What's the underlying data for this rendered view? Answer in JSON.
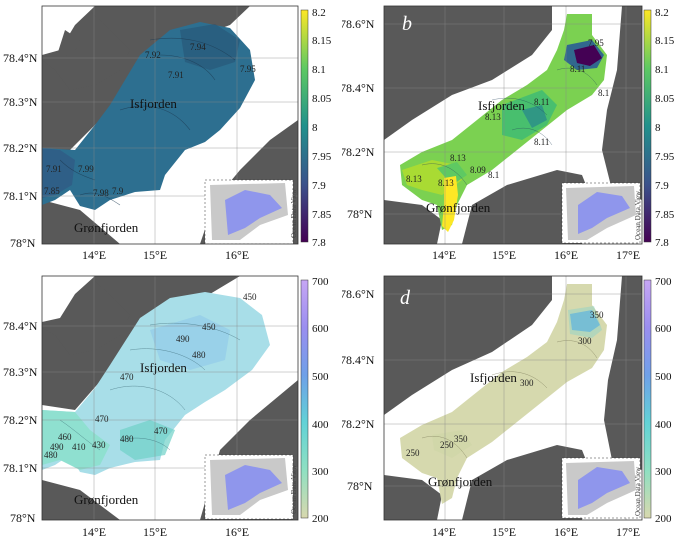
{
  "panels": [
    {
      "letter": "a",
      "place_labels": [
        "Isfjorden",
        "Grønfjorden"
      ],
      "contour_labels": [
        "7.94",
        "7.92",
        "7.91",
        "7.95",
        "7.91",
        "7.99",
        "7.98",
        "7.9",
        "7.85"
      ],
      "y_ticks": [
        "78.4°N",
        "78.3°N",
        "78.2°N",
        "78.1°N",
        "78°N"
      ],
      "x_ticks": [
        "14°E",
        "15°E",
        "16°E"
      ],
      "colorbar": {
        "ticks": [
          "8.2",
          "8.15",
          "8.1",
          "8.05",
          "8",
          "7.95",
          "7.9",
          "7.85",
          "7.8"
        ],
        "min": 7.8,
        "max": 8.2,
        "colors": [
          "#440154",
          "#3b528b",
          "#21918c",
          "#5ec962",
          "#fde725"
        ]
      },
      "watermark": "Ocean Data View"
    },
    {
      "letter": "b",
      "place_labels": [
        "Isfjorden",
        "Grønfjorden"
      ],
      "contour_labels": [
        "7.95",
        "8.11",
        "8.1",
        "8.11",
        "8.13",
        "8.11",
        "8.13",
        "8.09",
        "8.1",
        "8.13",
        "8.13"
      ],
      "y_ticks": [
        "78.6°N",
        "78.4°N",
        "78.2°N",
        "78°N"
      ],
      "x_ticks": [
        "14°E",
        "15°E",
        "16°E",
        "17°E"
      ],
      "colorbar": {
        "ticks": [
          "8.2",
          "8.15",
          "8.1",
          "8.05",
          "8",
          "7.95",
          "7.9",
          "7.85",
          "7.8"
        ],
        "min": 7.8,
        "max": 8.2,
        "colors": [
          "#440154",
          "#3b528b",
          "#21918c",
          "#5ec962",
          "#fde725"
        ]
      },
      "watermark": "Ocean Data View"
    },
    {
      "letter": "c",
      "place_labels": [
        "Isfjorden",
        "Grønfjorden"
      ],
      "contour_labels": [
        "450",
        "490",
        "480",
        "470",
        "450",
        "460",
        "490",
        "410",
        "480",
        "470",
        "430",
        "480",
        "470"
      ],
      "y_ticks": [
        "78.4°N",
        "78.3°N",
        "78.2°N",
        "78.1°N",
        "78°N"
      ],
      "x_ticks": [
        "14°E",
        "15°E",
        "16°E"
      ],
      "colorbar": {
        "ticks": [
          "700",
          "600",
          "500",
          "400",
          "300",
          "200"
        ],
        "min": 200,
        "max": 700,
        "colors": [
          "#d8d8ae",
          "#8fe0c2",
          "#62d2d6",
          "#6fa0e8",
          "#9a8ef0",
          "#c6a6f4"
        ]
      },
      "watermark": "Ocean Data View"
    },
    {
      "letter": "d",
      "place_labels": [
        "Isfjorden",
        "Grønfjorden"
      ],
      "contour_labels": [
        "350",
        "300",
        "300",
        "250",
        "350",
        "250"
      ],
      "y_ticks": [
        "78.6°N",
        "78.4°N",
        "78.2°N",
        "78°N"
      ],
      "x_ticks": [
        "14°E",
        "15°E",
        "16°E",
        "17°E"
      ],
      "colorbar": {
        "ticks": [
          "700",
          "600",
          "500",
          "400",
          "300",
          "200"
        ],
        "min": 200,
        "max": 700,
        "colors": [
          "#d8d8ae",
          "#8fe0c2",
          "#62d2d6",
          "#6fa0e8",
          "#9a8ef0",
          "#c6a6f4"
        ]
      },
      "watermark": "Ocean Data View"
    }
  ]
}
